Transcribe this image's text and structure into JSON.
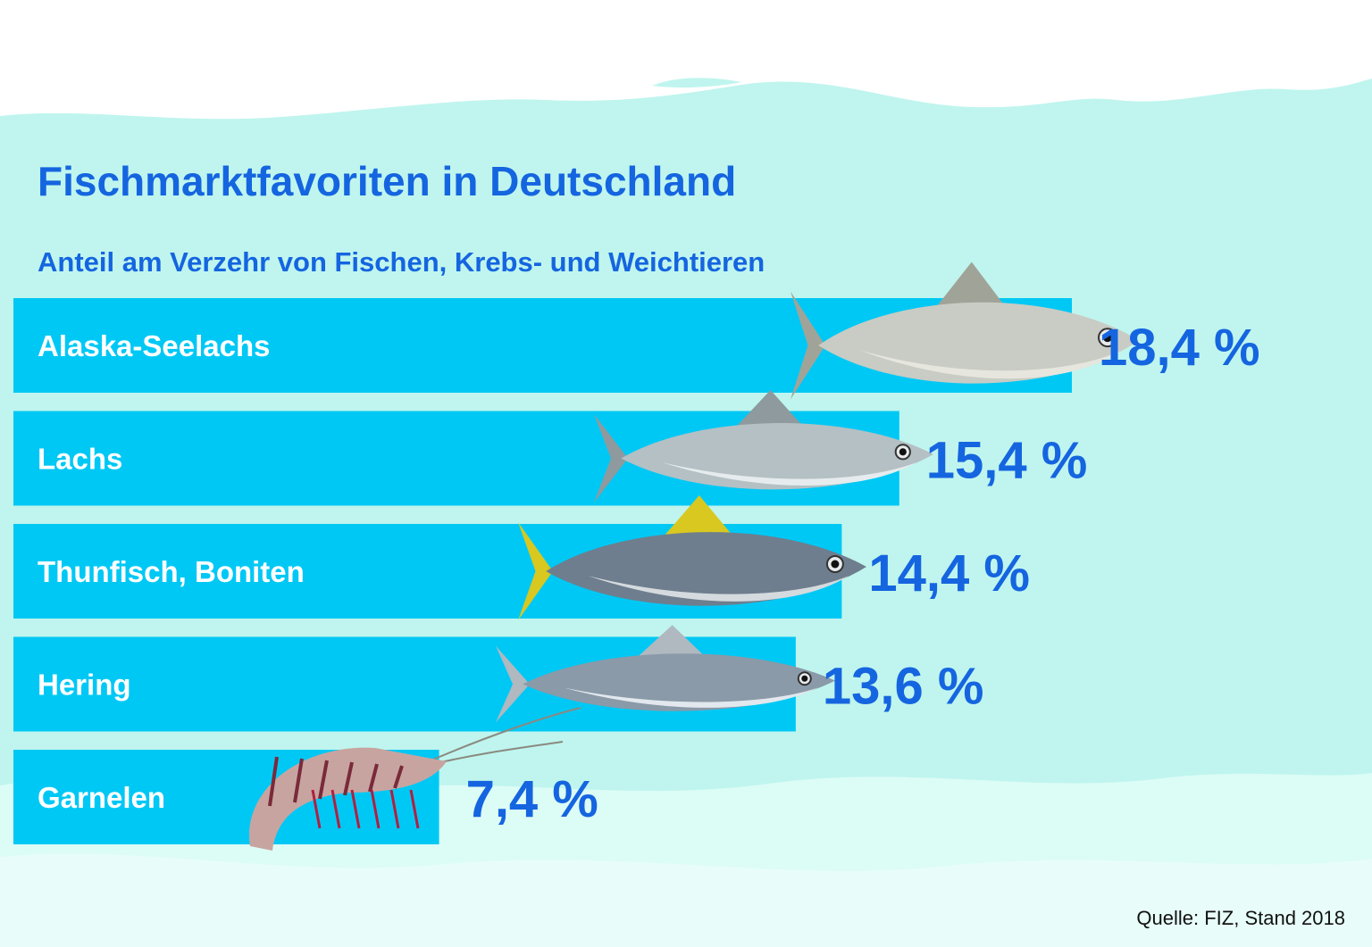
{
  "chart_data": {
    "type": "bar",
    "orientation": "horizontal",
    "title": "Fischmarktfavoriten in Deutschland",
    "subtitle": "Anteil am Verzehr von Fischen, Krebs- und Weichtieren",
    "categories": [
      "Alaska-Seelachs",
      "Lachs",
      "Thunfisch, Boniten",
      "Hering",
      "Garnelen"
    ],
    "values": [
      18.4,
      15.4,
      14.4,
      13.6,
      7.4
    ],
    "value_labels": [
      "18,4 %",
      "15,4 %",
      "14,4 %",
      "13,6 %",
      "7,4 %"
    ],
    "unit": "%",
    "xlim": [
      0,
      18.4
    ],
    "grid": false,
    "legend": "none",
    "source": "Quelle: FIZ, Stand 2018"
  },
  "illustrations": [
    "pollock-image",
    "salmon-image",
    "tuna-image",
    "herring-image",
    "shrimp-image"
  ],
  "colors": {
    "bar": "#00c8f5",
    "accent": "#1565e0",
    "water": "#bff5ee",
    "water_light": "#dcfcf6",
    "category_text": "#ffffff",
    "source_text": "#111111"
  }
}
